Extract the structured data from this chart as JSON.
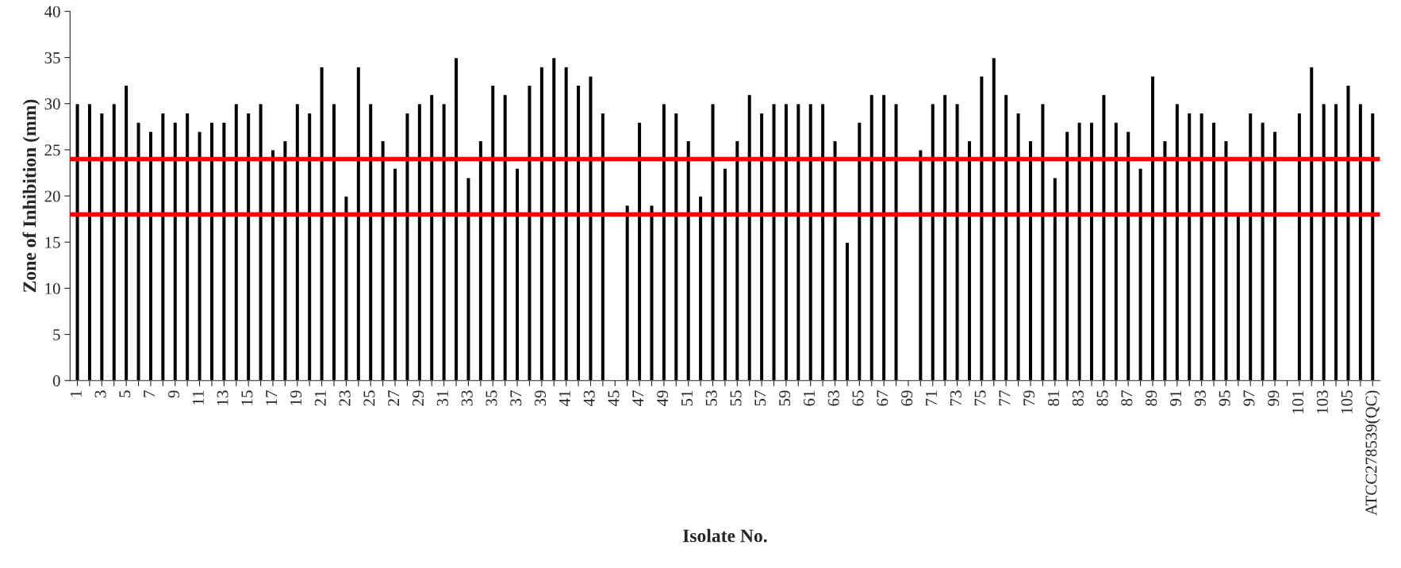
{
  "chart_data": {
    "type": "bar",
    "xlabel": "Isolate No.",
    "ylabel": "Zone of Inhibition (mm)",
    "categories": [
      "1",
      null,
      "3",
      null,
      "5",
      null,
      "7",
      null,
      "9",
      null,
      "11",
      null,
      "13",
      null,
      "15",
      null,
      "17",
      null,
      "19",
      null,
      "21",
      null,
      "23",
      null,
      "25",
      null,
      "27",
      null,
      "29",
      null,
      "31",
      null,
      "33",
      null,
      "35",
      null,
      "37",
      null,
      "39",
      null,
      "41",
      null,
      "43",
      null,
      "45",
      null,
      "47",
      null,
      "49",
      null,
      "51",
      null,
      "53",
      null,
      "55",
      null,
      "57",
      null,
      "59",
      null,
      "61",
      null,
      "63",
      null,
      "65",
      null,
      "67",
      null,
      "69",
      null,
      "71",
      null,
      "73",
      null,
      "75",
      null,
      "77",
      null,
      "79",
      null,
      "81",
      null,
      "83",
      null,
      "85",
      null,
      "87",
      null,
      "89",
      null,
      "91",
      null,
      "93",
      null,
      "95",
      null,
      "97",
      null,
      "99",
      null,
      "101",
      null,
      "103",
      null,
      "105",
      null,
      "ATCC278539(QC)"
    ],
    "values": [
      30,
      30,
      29,
      30,
      32,
      28,
      27,
      29,
      28,
      29,
      27,
      28,
      28,
      30,
      29,
      30,
      25,
      26,
      30,
      29,
      34,
      30,
      20,
      34,
      30,
      26,
      23,
      29,
      30,
      31,
      30,
      35,
      22,
      26,
      32,
      31,
      23,
      32,
      34,
      35,
      34,
      32,
      33,
      29,
      null,
      19,
      28,
      19,
      30,
      29,
      26,
      20,
      30,
      23,
      26,
      31,
      29,
      30,
      30,
      30,
      30,
      30,
      26,
      15,
      28,
      31,
      31,
      30,
      null,
      25,
      30,
      31,
      30,
      26,
      33,
      35,
      31,
      29,
      26,
      30,
      22,
      27,
      28,
      28,
      31,
      28,
      27,
      23,
      33,
      26,
      30,
      29,
      29,
      28,
      26,
      18,
      29,
      28,
      27,
      null,
      29,
      34,
      30,
      30,
      32,
      30,
      29
    ],
    "color": "#000000",
    "ylim": [
      0,
      40
    ],
    "yticks": [
      0,
      5,
      10,
      15,
      20,
      25,
      30,
      35,
      40
    ],
    "ref_lines": [
      {
        "axis": "y",
        "value": 24,
        "color": "#ff0000"
      },
      {
        "axis": "y",
        "value": 18,
        "color": "#ff0000"
      }
    ],
    "grid": false
  }
}
